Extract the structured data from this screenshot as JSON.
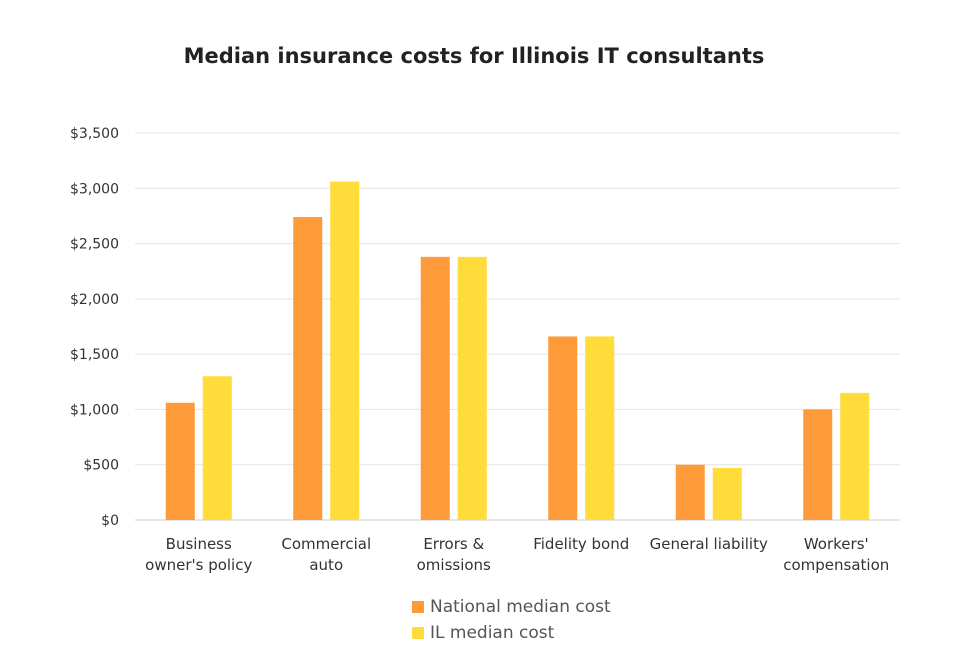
{
  "chart_data": {
    "type": "bar",
    "title": "Median insurance costs for Illinois IT consultants",
    "xlabel": "",
    "ylabel": "",
    "ylim": [
      0,
      3500
    ],
    "y_ticks": [
      0,
      500,
      1000,
      1500,
      2000,
      2500,
      3000,
      3500
    ],
    "y_tick_labels": [
      "$0",
      "$500",
      "$1,000",
      "$1,500",
      "$2,000",
      "$2,500",
      "$3,000",
      "$3,500"
    ],
    "categories": [
      [
        "Business",
        "owner's policy"
      ],
      [
        "Commercial",
        "auto"
      ],
      [
        "Errors &",
        "omissions"
      ],
      [
        "Fidelity bond"
      ],
      [
        "General liability"
      ],
      [
        "Workers'",
        "compensation"
      ]
    ],
    "series": [
      {
        "name": "National median cost",
        "color": "#FF9A3A",
        "values": [
          1060,
          2740,
          2380,
          1660,
          500,
          1000
        ]
      },
      {
        "name": "IL median cost",
        "color": "#FFDC3A",
        "values": [
          1300,
          3060,
          2380,
          1660,
          470,
          1150
        ]
      }
    ],
    "grid": true,
    "legend_position": "bottom"
  }
}
